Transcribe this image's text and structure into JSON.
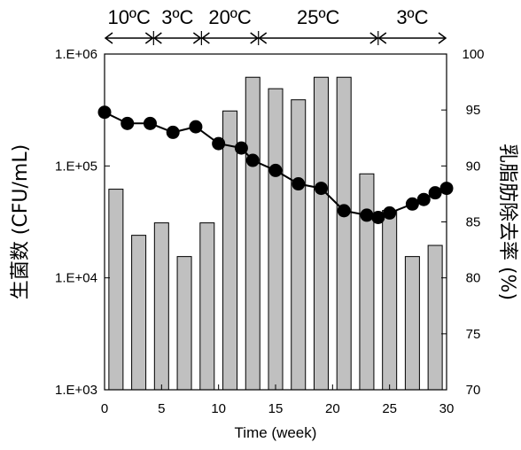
{
  "chart_data": {
    "type": "bar+line",
    "xlabel": "Time (week)",
    "ylabel_left": "生菌数 (CFU/mL)",
    "ylabel_right": "乳脂肪除去率 (%)",
    "x_ticks": [
      0,
      5,
      10,
      15,
      20,
      25,
      30
    ],
    "xlim": [
      0,
      30
    ],
    "yleft_scale": "log",
    "yleft_ticks": [
      "1.E+03",
      "1.E+04",
      "1.E+05",
      "1.E+06"
    ],
    "yleft_lim": [
      1000,
      1000000
    ],
    "yright_ticks": [
      70,
      75,
      80,
      85,
      90,
      95,
      100
    ],
    "yright_lim": [
      70,
      100
    ],
    "temperature_periods": [
      {
        "label": "10ºC",
        "start": 0,
        "end": 4.3
      },
      {
        "label": "3ºC",
        "start": 4.3,
        "end": 8.5
      },
      {
        "label": "20ºC",
        "start": 8.5,
        "end": 13.5
      },
      {
        "label": "25ºC",
        "start": 13.5,
        "end": 24
      },
      {
        "label": "3ºC",
        "start": 24,
        "end": 30
      }
    ],
    "bars": {
      "name": "生菌数",
      "x": [
        1,
        3,
        5,
        7,
        9,
        11,
        13,
        15,
        17,
        19,
        21,
        23,
        25,
        27,
        29
      ],
      "values": [
        62000,
        24000,
        31000,
        15500,
        31000,
        310000,
        620000,
        490000,
        390000,
        620000,
        620000,
        85000,
        40000,
        15500,
        19500
      ]
    },
    "line": {
      "name": "乳脂肪除去率",
      "x": [
        0,
        2,
        4,
        6,
        8,
        10,
        12,
        13,
        15,
        17,
        19,
        21,
        23,
        24,
        25,
        27,
        28,
        29,
        30
      ],
      "values": [
        94.8,
        93.8,
        93.8,
        93.0,
        93.5,
        92.0,
        91.6,
        90.5,
        89.6,
        88.4,
        88.0,
        86.0,
        85.6,
        85.4,
        85.8,
        86.6,
        87.0,
        87.6,
        88.0
      ]
    },
    "colors": {
      "bar_fill": "#c0c0c0",
      "bar_stroke": "#000000",
      "line": "#000000",
      "marker": "#000000"
    },
    "grid": false,
    "legend": "none"
  }
}
